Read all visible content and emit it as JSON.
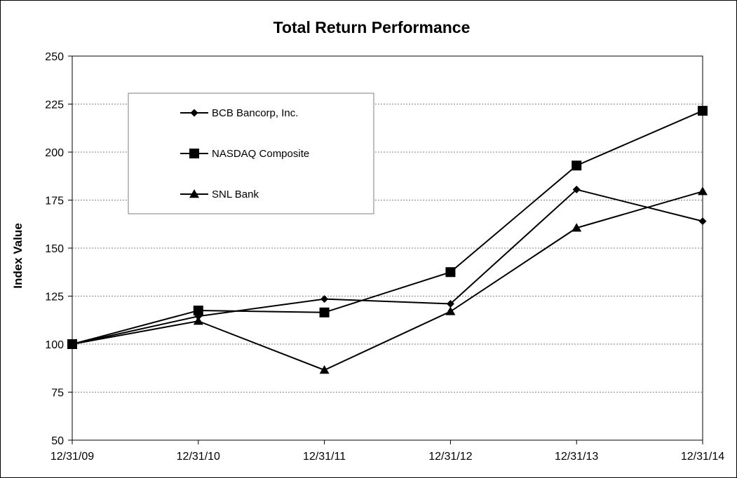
{
  "chart_data": {
    "type": "line",
    "title": "Total Return Performance",
    "xlabel": "",
    "ylabel": "Index Value",
    "x": [
      "12/31/09",
      "12/31/10",
      "12/31/11",
      "12/31/12",
      "12/31/13",
      "12/31/14"
    ],
    "ylim": [
      50,
      250
    ],
    "yticks": [
      50,
      75,
      100,
      125,
      150,
      175,
      200,
      225,
      250
    ],
    "grid": "horizontal dashed",
    "legend_position": "top-left",
    "series": [
      {
        "name": "BCB Bancorp, Inc.",
        "marker": "diamond",
        "values": [
          100,
          114.5,
          123.5,
          121,
          180.5,
          164
        ]
      },
      {
        "name": "NASDAQ Composite",
        "marker": "square",
        "values": [
          100,
          117.5,
          116.5,
          137.5,
          193,
          221.5
        ]
      },
      {
        "name": "SNL Bank",
        "marker": "triangle",
        "values": [
          100,
          112,
          86.5,
          117,
          160.5,
          179.5
        ]
      }
    ]
  },
  "colors": {
    "line": "#000000",
    "grid": "#7f7f7f",
    "legend_border": "#7f7f7f"
  }
}
